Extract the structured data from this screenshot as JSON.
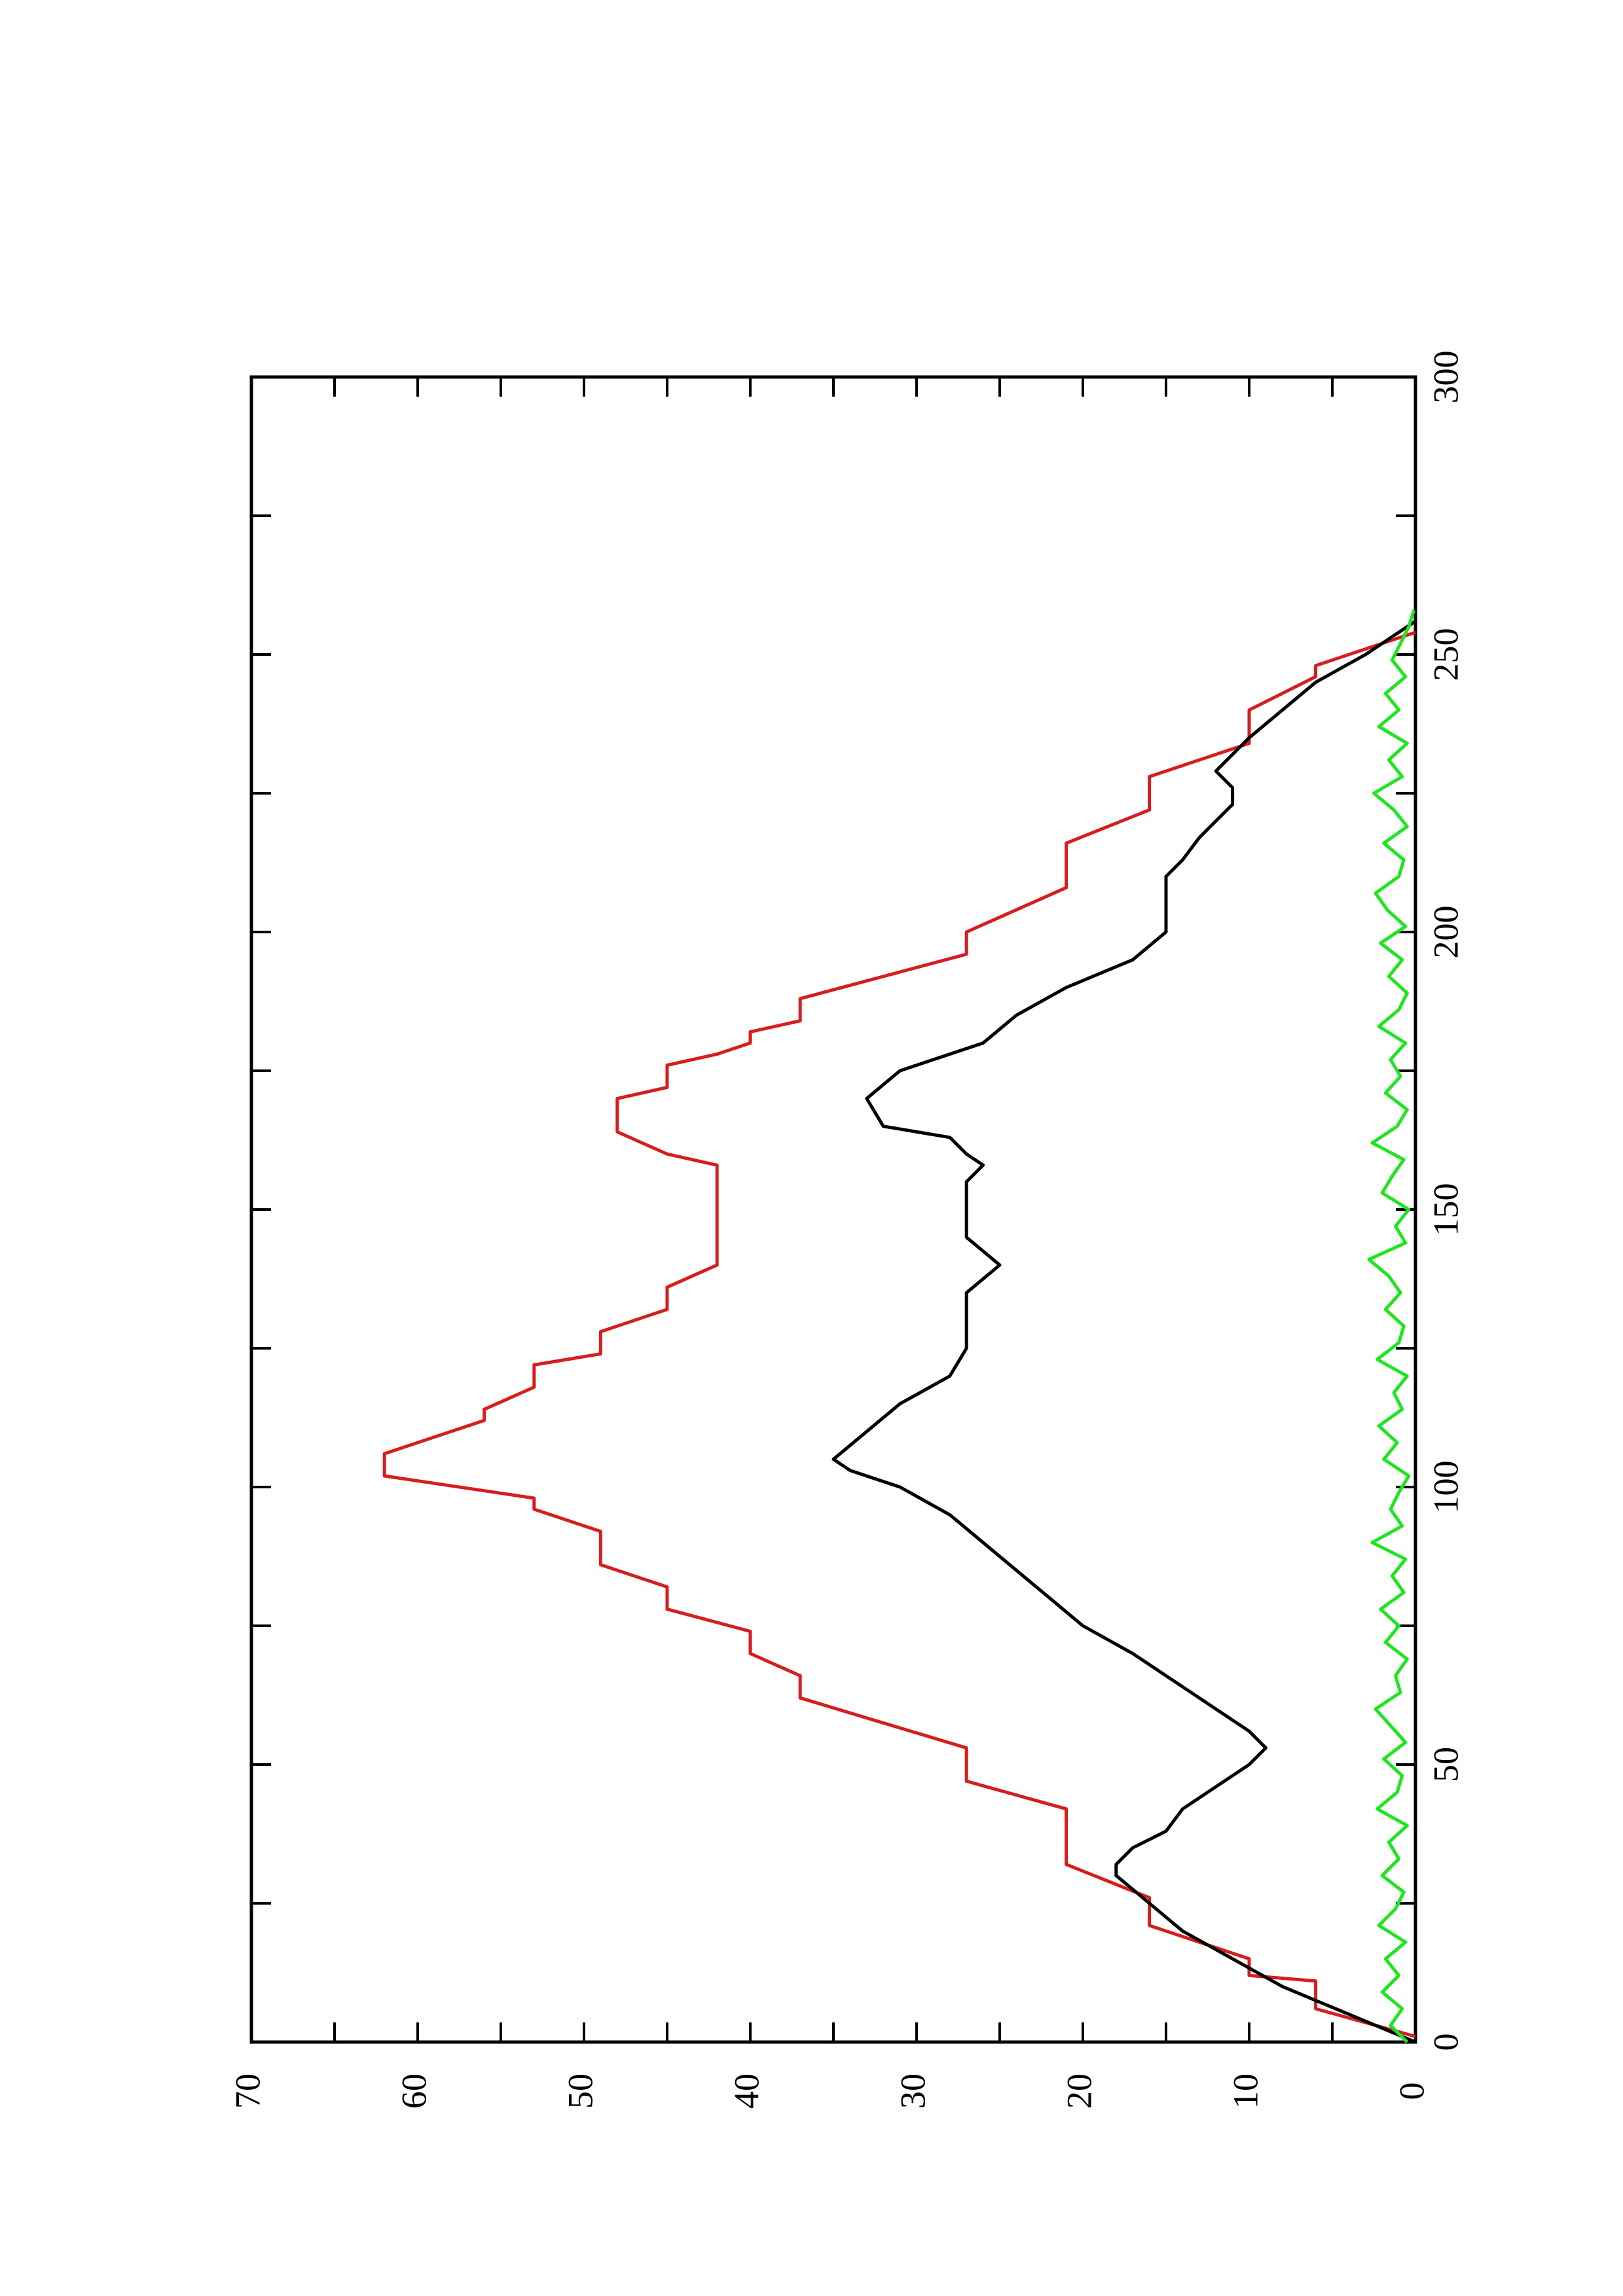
{
  "chart_data": {
    "type": "line",
    "orientation": "rotated",
    "xlim": [
      0,
      300
    ],
    "xticks": [
      0,
      50,
      100,
      150,
      200,
      250,
      300
    ],
    "x_minor_ticks": [
      25,
      75,
      125,
      175,
      225,
      275
    ],
    "ylim": [
      0,
      70
    ],
    "yticks": [
      0,
      10,
      20,
      30,
      40,
      50,
      60,
      70
    ],
    "y_minor_ticks": [
      5,
      15,
      25,
      35,
      45,
      55,
      65
    ],
    "series": [
      {
        "color": "#d61e1e",
        "x": [
          1,
          6,
          11,
          12,
          15,
          21,
          26,
          32,
          42,
          47,
          53,
          62,
          66,
          70,
          74,
          78,
          82,
          86,
          92,
          96,
          98,
          102,
          106,
          112,
          114,
          118,
          122,
          124,
          128,
          132,
          136,
          140,
          158,
          160,
          164,
          170,
          172,
          176,
          178,
          180,
          182,
          184,
          188,
          196,
          200,
          208,
          216,
          222,
          228,
          234,
          240,
          246,
          248,
          254
        ],
        "values": [
          0,
          6,
          6,
          10,
          10,
          16,
          16,
          21,
          21,
          27,
          27,
          37,
          37,
          40,
          40,
          45,
          45,
          49,
          49,
          53,
          53,
          62,
          62,
          56,
          56,
          53,
          53,
          49,
          49,
          45,
          45,
          42,
          42,
          45,
          48,
          48,
          45,
          45,
          42,
          40,
          40,
          37,
          37,
          27,
          27,
          21,
          21,
          16,
          16,
          10,
          10,
          6,
          6,
          0
        ]
      },
      {
        "color": "#000000",
        "x": [
          0,
          5,
          10,
          15,
          20,
          25,
          30,
          32,
          35,
          38,
          42,
          46,
          50,
          53,
          56,
          60,
          66,
          70,
          75,
          80,
          85,
          90,
          95,
          100,
          103,
          105,
          110,
          115,
          120,
          125,
          130,
          135,
          140,
          145,
          150,
          155,
          158,
          160,
          163,
          165,
          170,
          175,
          180,
          185,
          190,
          195,
          200,
          205,
          210,
          213,
          217,
          220,
          223,
          226,
          229,
          232,
          235,
          240,
          245,
          250,
          254,
          256
        ],
        "values": [
          0,
          4,
          8,
          11,
          14,
          16,
          18,
          18,
          17,
          15,
          14,
          12,
          10,
          9,
          10,
          12,
          15,
          17,
          20,
          22,
          24,
          26,
          28,
          31,
          34,
          35,
          33,
          31,
          28,
          27,
          27,
          27,
          25,
          27,
          27,
          27,
          26,
          27,
          28,
          32,
          33,
          31,
          26,
          24,
          21,
          17,
          15,
          15,
          15,
          14,
          13,
          12,
          11,
          11,
          12,
          11,
          10,
          8,
          6,
          3,
          1,
          0
        ]
      },
      {
        "color": "#1ee61e",
        "x": [
          0,
          3,
          6,
          9,
          12,
          15,
          18,
          21,
          24,
          27,
          30,
          33,
          36,
          39,
          42,
          45,
          48,
          51,
          54,
          57,
          60,
          63,
          66,
          69,
          72,
          75,
          78,
          81,
          84,
          87,
          90,
          93,
          96,
          99,
          102,
          105,
          108,
          111,
          114,
          117,
          120,
          123,
          126,
          129,
          132,
          135,
          138,
          141,
          144,
          147,
          150,
          153,
          156,
          159,
          162,
          165,
          168,
          171,
          174,
          177,
          180,
          183,
          186,
          189,
          192,
          195,
          198,
          201,
          204,
          207,
          210,
          213,
          216,
          219,
          222,
          225,
          228,
          231,
          234,
          237,
          240,
          243,
          246,
          249,
          252,
          255,
          258
        ],
        "values": [
          0.5,
          1.5,
          0.8,
          2.0,
          1.0,
          1.8,
          0.6,
          2.2,
          1.2,
          0.7,
          2.0,
          1.0,
          1.6,
          0.5,
          2.3,
          1.1,
          0.8,
          1.9,
          0.6,
          1.5,
          2.4,
          0.9,
          1.2,
          0.5,
          1.8,
          1.0,
          2.1,
          0.7,
          1.4,
          0.6,
          2.6,
          0.8,
          1.5,
          1.0,
          0.4,
          1.9,
          1.1,
          2.2,
          0.8,
          1.3,
          0.5,
          2.3,
          1.0,
          0.7,
          1.8,
          0.9,
          1.6,
          2.8,
          0.6,
          1.2,
          0.4,
          2.0,
          1.4,
          0.7,
          2.6,
          1.1,
          0.5,
          1.8,
          0.9,
          1.5,
          0.6,
          2.2,
          1.0,
          0.5,
          1.6,
          0.8,
          2.1,
          0.6,
          1.7,
          2.4,
          1.0,
          0.7,
          1.9,
          0.5,
          1.3,
          2.5,
          0.8,
          1.6,
          0.5,
          2.2,
          1.0,
          1.8,
          0.6,
          1.4,
          0.9,
          0.4,
          0.1
        ]
      }
    ]
  }
}
